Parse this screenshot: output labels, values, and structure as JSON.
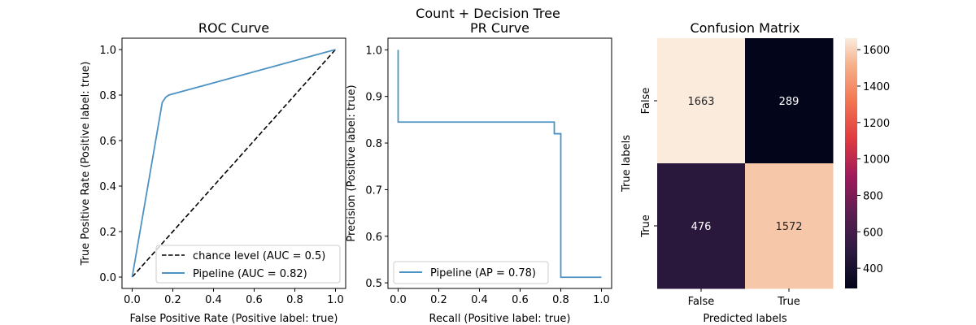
{
  "suptitle": "Count + Decision Tree",
  "colors": {
    "pipeline": "#4c92c3",
    "chance": "#000000",
    "axes": "#000000"
  },
  "chart_data": [
    {
      "type": "line",
      "title": "ROC Curve",
      "xlabel": "False Positive Rate (Positive label: true)",
      "ylabel": "True Positive Rate (Positive label: true)",
      "xlim": [
        -0.05,
        1.05
      ],
      "ylim": [
        -0.05,
        1.05
      ],
      "xticks": [
        "0.0",
        "0.2",
        "0.4",
        "0.6",
        "0.8",
        "1.0"
      ],
      "yticks": [
        "0.0",
        "0.2",
        "0.4",
        "0.6",
        "0.8",
        "1.0"
      ],
      "grid": false,
      "legend_position": "lower-right",
      "series": [
        {
          "name": "chance level (AUC = 0.5)",
          "style": "dashed",
          "x": [
            0,
            1
          ],
          "y": [
            0,
            1
          ]
        },
        {
          "name": "Pipeline (AUC = 0.82)",
          "style": "solid",
          "x": [
            0,
            0.148,
            0.165,
            0.18,
            1.0
          ],
          "y": [
            0,
            0.768,
            0.79,
            0.8,
            1.0
          ]
        }
      ]
    },
    {
      "type": "line",
      "title": "PR Curve",
      "xlabel": "Recall (Positive label: true)",
      "ylabel": "Precision (Positive label: true)",
      "xlim": [
        -0.05,
        1.05
      ],
      "ylim": [
        0.488,
        1.025
      ],
      "xticks": [
        "0.0",
        "0.2",
        "0.4",
        "0.6",
        "0.8",
        "1.0"
      ],
      "yticks": [
        "0.5",
        "0.6",
        "0.7",
        "0.8",
        "0.9",
        "1.0"
      ],
      "grid": false,
      "legend_position": "lower-left",
      "series": [
        {
          "name": "Pipeline (AP = 0.78)",
          "style": "step",
          "x": [
            0.0,
            0.0,
            0.0,
            0.768,
            0.768,
            0.78,
            0.78,
            0.8,
            0.8,
            1.0
          ],
          "y": [
            1.0,
            1.0,
            0.845,
            0.845,
            0.82,
            0.82,
            0.82,
            0.82,
            0.512,
            0.512
          ]
        }
      ]
    },
    {
      "type": "heatmap",
      "title": "Confusion Matrix",
      "xlabel": "Predicted labels",
      "ylabel": "True labels",
      "x_categories": [
        "False",
        "True"
      ],
      "y_categories": [
        "False",
        "True"
      ],
      "values": [
        [
          1663,
          289
        ],
        [
          476,
          1572
        ]
      ],
      "colorbar": {
        "min": 289,
        "max": 1663,
        "ticks": [
          "400",
          "600",
          "800",
          "1000",
          "1200",
          "1400",
          "1600"
        ]
      }
    }
  ]
}
